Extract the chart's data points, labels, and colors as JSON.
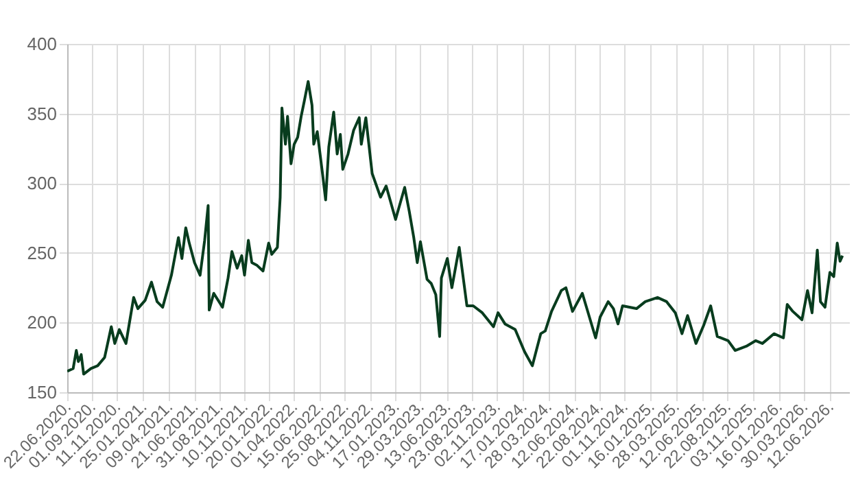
{
  "chart_data": {
    "type": "line",
    "x": [
      "2020-06-22",
      "2020-07-09",
      "2020-07-18",
      "2020-07-24",
      "2020-08-01",
      "2020-08-08",
      "2020-08-29",
      "2020-09-17",
      "2020-10-07",
      "2020-10-26",
      "2020-11-05",
      "2020-11-18",
      "2020-12-07",
      "2020-12-29",
      "2021-01-10",
      "2021-01-31",
      "2021-02-18",
      "2021-03-06",
      "2021-03-22",
      "2021-04-16",
      "2021-05-06",
      "2021-05-16",
      "2021-05-27",
      "2021-06-06",
      "2021-06-21",
      "2021-07-07",
      "2021-07-20",
      "2021-07-30",
      "2021-08-02",
      "2021-08-15",
      "2021-09-09",
      "2021-09-25",
      "2021-10-06",
      "2021-10-21",
      "2021-11-03",
      "2021-11-11",
      "2021-11-22",
      "2021-12-02",
      "2021-12-17",
      "2022-01-03",
      "2022-01-19",
      "2022-01-28",
      "2022-02-13",
      "2022-02-21",
      "2022-02-26",
      "2022-03-08",
      "2022-03-14",
      "2022-03-24",
      "2022-04-02",
      "2022-04-12",
      "2022-04-22",
      "2022-05-01",
      "2022-05-12",
      "2022-05-23",
      "2022-05-28",
      "2022-06-07",
      "2022-06-22",
      "2022-07-01",
      "2022-07-10",
      "2022-07-24",
      "2022-08-03",
      "2022-08-12",
      "2022-08-19",
      "2022-09-03",
      "2022-09-19",
      "2022-10-05",
      "2022-10-11",
      "2022-10-24",
      "2022-11-11",
      "2022-12-05",
      "2022-12-21",
      "2023-01-17",
      "2023-02-12",
      "2023-02-25",
      "2023-03-10",
      "2023-03-20",
      "2023-03-29",
      "2023-04-10",
      "2023-04-17",
      "2023-04-29",
      "2023-05-12",
      "2023-05-23",
      "2023-05-28",
      "2023-06-14",
      "2023-06-27",
      "2023-07-18",
      "2023-08-09",
      "2023-08-27",
      "2023-09-22",
      "2023-10-24",
      "2023-11-06",
      "2023-11-26",
      "2023-12-25",
      "2024-01-21",
      "2024-02-12",
      "2024-03-07",
      "2024-03-20",
      "2024-04-07",
      "2024-05-05",
      "2024-05-18",
      "2024-06-06",
      "2024-07-04",
      "2024-07-23",
      "2024-08-11",
      "2024-08-24",
      "2024-09-16",
      "2024-10-01",
      "2024-10-14",
      "2024-10-27",
      "2024-12-06",
      "2024-12-31",
      "2025-02-04",
      "2025-03-02",
      "2025-03-27",
      "2025-04-15",
      "2025-05-01",
      "2025-05-25",
      "2025-06-16",
      "2025-07-06",
      "2025-07-25",
      "2025-08-25",
      "2025-09-14",
      "2025-10-16",
      "2025-11-12",
      "2025-12-01",
      "2026-01-03",
      "2026-01-30",
      "2026-02-10",
      "2026-02-26",
      "2026-03-24",
      "2026-04-09",
      "2026-04-22",
      "2026-05-07",
      "2026-05-16",
      "2026-05-29",
      "2026-06-12",
      "2026-06-23",
      "2026-07-03",
      "2026-07-11",
      "2026-07-18"
    ],
    "series": [
      {
        "color": "#083c1e",
        "values": [
          165,
          167,
          180,
          172,
          177,
          163,
          167,
          169,
          175,
          197,
          185,
          195,
          185,
          218,
          210,
          216,
          229,
          215,
          211,
          234,
          261,
          246,
          268,
          257,
          243,
          234,
          259,
          284,
          209,
          221,
          211,
          232,
          251,
          239,
          248,
          234,
          259,
          243,
          241,
          237,
          257,
          249,
          254,
          290,
          354,
          328,
          348,
          314,
          328,
          333,
          348,
          359,
          373,
          356,
          328,
          337,
          307,
          288,
          326,
          351,
          321,
          335,
          310,
          321,
          338,
          347,
          328,
          347,
          307,
          290,
          298,
          274,
          297,
          280,
          261,
          243,
          258,
          241,
          231,
          228,
          220,
          190,
          232,
          246,
          225,
          254,
          212,
          212,
          207,
          197,
          207,
          199,
          195,
          179,
          169,
          192,
          194,
          208,
          223,
          225,
          208,
          221,
          205,
          189,
          204,
          215,
          210,
          199,
          212,
          210,
          215,
          218,
          215,
          207,
          192,
          205,
          185,
          198,
          212,
          190,
          187,
          180,
          183,
          187,
          185,
          192,
          189,
          213,
          208,
          202,
          223,
          207,
          252,
          215,
          211,
          236,
          233,
          257,
          244,
          248
        ]
      }
    ],
    "xlim": [
      "2020-06-22",
      "2026-08-06"
    ],
    "xticks": [
      {
        "value": "2020-06-22",
        "label": "22.06.2020."
      },
      {
        "value": "2020-09-01",
        "label": "01.09.2020."
      },
      {
        "value": "2020-11-11",
        "label": "11.11.2020."
      },
      {
        "value": "2021-01-25",
        "label": "25.01.2021."
      },
      {
        "value": "2021-04-09",
        "label": "09.04.2021."
      },
      {
        "value": "2021-06-21",
        "label": "21.06.2021."
      },
      {
        "value": "2021-08-31",
        "label": "31.08.2021."
      },
      {
        "value": "2021-11-10",
        "label": "10.11.2021."
      },
      {
        "value": "2022-01-20",
        "label": "20.01.2022."
      },
      {
        "value": "2022-04-01",
        "label": "01.04.2022."
      },
      {
        "value": "2022-06-15",
        "label": "15.06.2022."
      },
      {
        "value": "2022-08-25",
        "label": "25.08.2022."
      },
      {
        "value": "2022-11-04",
        "label": "04.11.2022."
      },
      {
        "value": "2023-01-17",
        "label": "17.01.2023."
      },
      {
        "value": "2023-03-29",
        "label": "29.03.2023."
      },
      {
        "value": "2023-06-13",
        "label": "13.06.2023."
      },
      {
        "value": "2023-08-23",
        "label": "23.08.2023."
      },
      {
        "value": "2023-11-02",
        "label": "02.11.2023."
      },
      {
        "value": "2024-01-17",
        "label": "17.01.2024."
      },
      {
        "value": "2024-03-28",
        "label": "28.03.2024."
      },
      {
        "value": "2024-06-12",
        "label": "12.06.2024."
      },
      {
        "value": "2024-08-22",
        "label": "22.08.2024."
      },
      {
        "value": "2024-11-01",
        "label": "01.11.2024."
      },
      {
        "value": "2025-01-16",
        "label": "16.01.2025."
      },
      {
        "value": "2025-03-28",
        "label": "28.03.2025."
      },
      {
        "value": "2025-06-12",
        "label": "12.06.2025."
      },
      {
        "value": "2025-08-22",
        "label": "22.08.2025."
      },
      {
        "value": "2025-11-03",
        "label": "03.11.2025."
      },
      {
        "value": "2026-01-16",
        "label": "16.01.2026."
      },
      {
        "value": "2026-03-30",
        "label": "30.03.2026."
      },
      {
        "value": "2026-06-12",
        "label": "12.06.2026."
      }
    ],
    "ylim": [
      150,
      400
    ],
    "yticks": [
      150,
      200,
      250,
      300,
      350,
      400
    ],
    "grid": true,
    "marker": "none",
    "line_style": "solid"
  }
}
